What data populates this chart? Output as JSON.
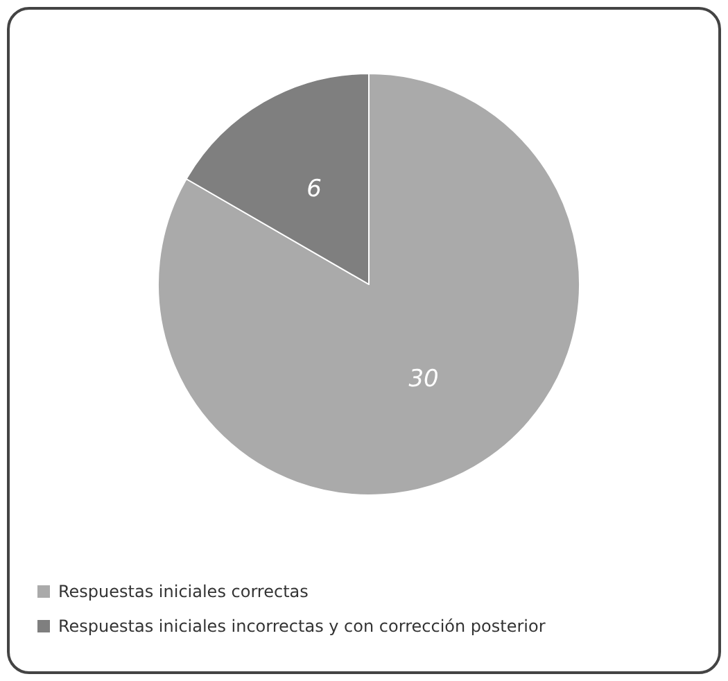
{
  "chart_data": {
    "type": "pie",
    "categories": [
      "Respuestas iniciales correctas",
      "Respuestas iniciales incorrectas y con corrección posterior"
    ],
    "values": [
      30,
      6
    ],
    "colors": [
      "#aaaaaa",
      "#7f7f7f"
    ],
    "data_labels": true,
    "legend": "bottom left"
  }
}
